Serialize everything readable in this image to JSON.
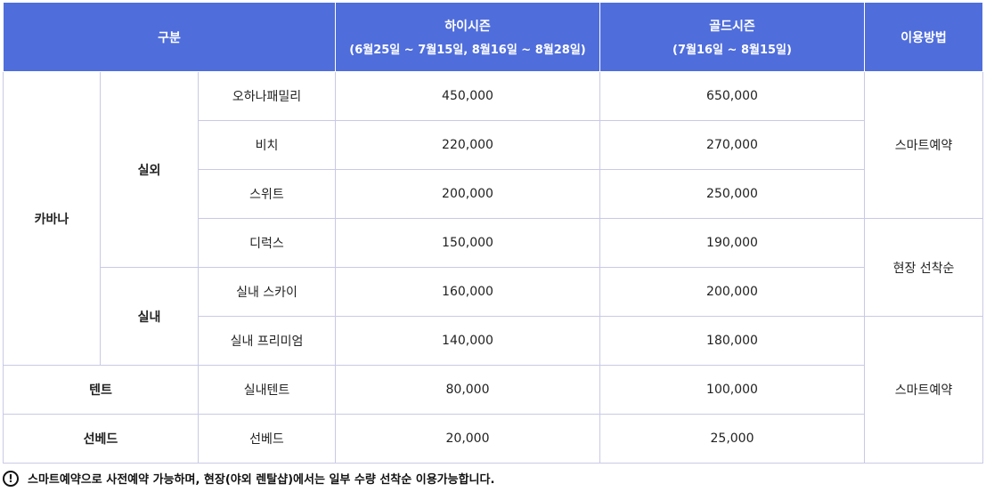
{
  "header": {
    "category": "구분",
    "high_season": {
      "title": "하이시즌",
      "period": "(6월25일 ~ 7월15일, 8월16일 ~ 8월28일)"
    },
    "gold_season": {
      "title": "골드시즌",
      "period": "(7월16일 ~ 8월15일)"
    },
    "usage": "이용방법"
  },
  "groups": {
    "cabana": "카바나",
    "outdoor": "실외",
    "indoor": "실내",
    "tent": "텐트",
    "sunbed": "선베드"
  },
  "rows": [
    {
      "name": "오하나패밀리",
      "high": "450,000",
      "gold": "650,000"
    },
    {
      "name": "비치",
      "high": "220,000",
      "gold": "270,000"
    },
    {
      "name": "스위트",
      "high": "200,000",
      "gold": "250,000"
    },
    {
      "name": "디럭스",
      "high": "150,000",
      "gold": "190,000"
    },
    {
      "name": "실내 스카이",
      "high": "160,000",
      "gold": "200,000"
    },
    {
      "name": "실내 프리미엄",
      "high": "140,000",
      "gold": "180,000"
    },
    {
      "name": "실내텐트",
      "high": "80,000",
      "gold": "100,000"
    },
    {
      "name": "선베드",
      "high": "20,000",
      "gold": "25,000"
    }
  ],
  "usage_methods": {
    "smart_1": "스마트예약",
    "onsite": "현장 선착순",
    "smart_2": "스마트예약"
  },
  "note": {
    "icon": "!",
    "text": "스마트예약으로 사전예약 가능하며, 현장(야외 렌탈샵)에서는 일부 수량 선착순 이용가능합니다."
  },
  "colors": {
    "header_bg": "#4f6ddb",
    "border": "#c9c9e6"
  }
}
